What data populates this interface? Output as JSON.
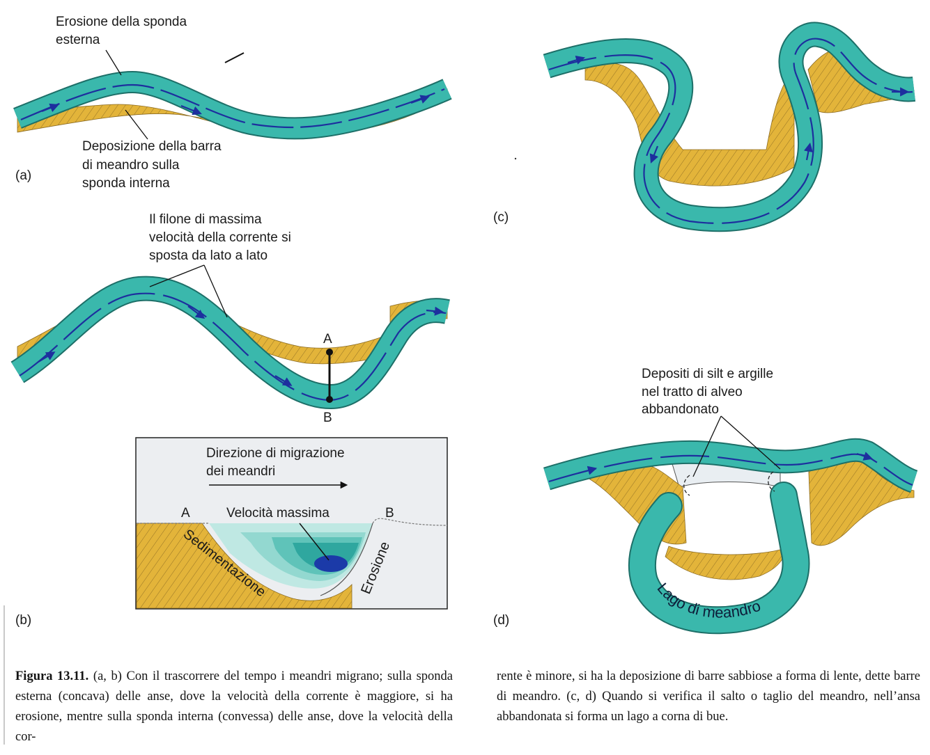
{
  "panels": {
    "a": {
      "id": "(a)",
      "erosion_label": [
        "Erosione della sponda",
        "esterna"
      ],
      "deposition_label": [
        "Deposizione della barra",
        "di meandro sulla",
        "sponda interna"
      ]
    },
    "b": {
      "id": "(b)",
      "velocity_label": [
        "Il filone di massima",
        "velocità della corrente si",
        "sposta da lato a lato"
      ],
      "point_a": "A",
      "point_b": "B",
      "inset": {
        "direction_label": [
          "Direzione di migrazione",
          "dei meandri"
        ],
        "point_a": "A",
        "point_b": "B",
        "max_velocity": "Velocità massima",
        "sedimentation": "Sedimentazione",
        "erosion": "Erosione"
      }
    },
    "c": {
      "id": "(c)"
    },
    "d": {
      "id": "(d)",
      "deposits_label": [
        "Depositi di silt e argille",
        "nel tratto di alveo",
        "abbandonato"
      ],
      "lake_label": "Lago di meandro"
    }
  },
  "caption": {
    "figure_label": "Figura 13.11.",
    "left_text": "(a, b) Con il trascorrere del tempo i meandri migrano; sulla sponda esterna (concava) delle anse, dove la velocità della corrente è maggiore, si ha erosione, mentre sulla sponda interna (convessa) delle anse, dove la velocità della cor-",
    "right_text": "rente è minore, si ha la deposizione di barre sabbiose a forma di lente, dette barre di meandro. (c, d) Quando si verifica il salto o taglio del meandro, nell’ansa abbandonata si forma un lago a corna di bue."
  },
  "colors": {
    "river": "#3ab8ac",
    "river_edge": "#1d6f68",
    "flow_arrow": "#1d2f9e",
    "sediment": "#e3b43a",
    "sediment_line": "#7a5a1c",
    "inset_bg": "#eceef1",
    "water_deep": "#1b3aa8"
  }
}
